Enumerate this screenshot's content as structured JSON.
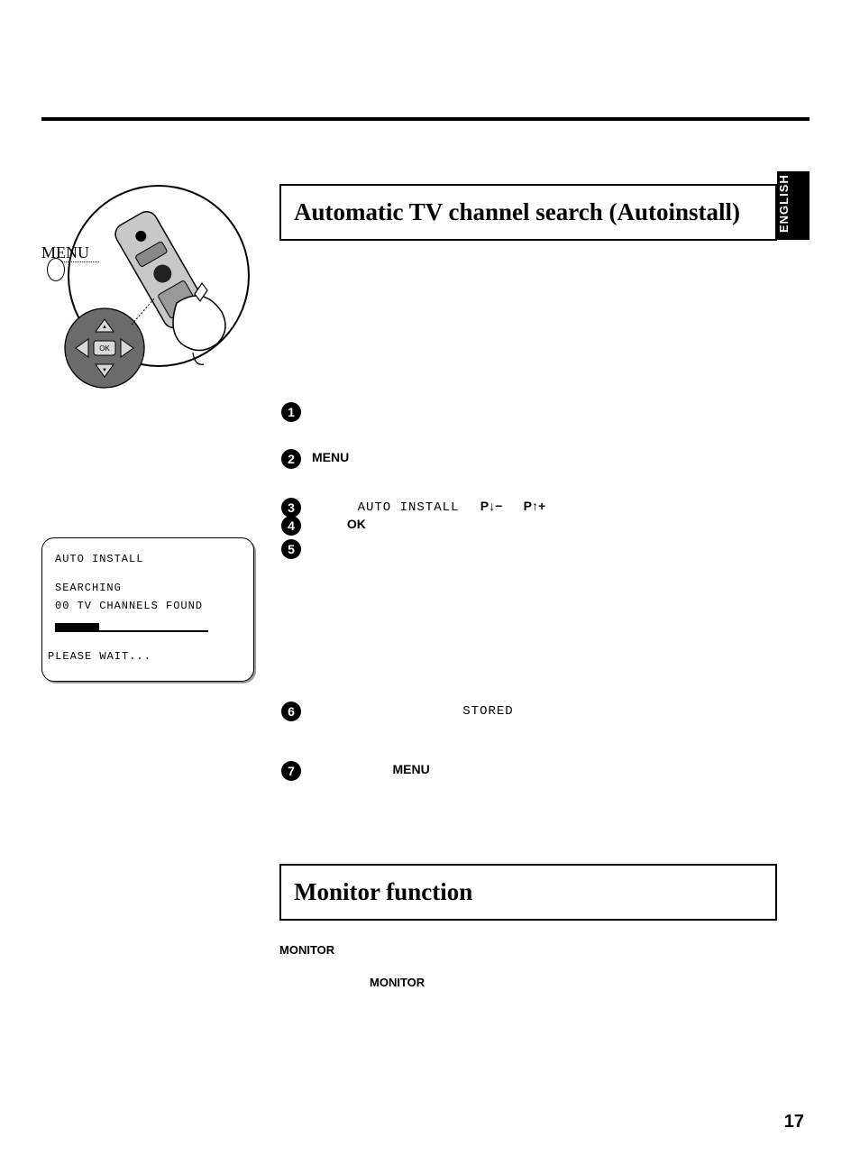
{
  "language_tab": "ENGLISH",
  "section1_title": "Automatic TV channel search (Autoinstall)",
  "section2_title": "Monitor function",
  "remote": {
    "menu_label": "MENU"
  },
  "steps": {
    "s2_menu": "MENU",
    "s3_autoinstall": "AUTO INSTALL",
    "s3_pdown": "P↓−",
    "s3_pup": "P↑+",
    "s4_ok": "OK",
    "s6_stored": "STORED",
    "s7_menu": "MENU"
  },
  "tv_screen": {
    "line1": "AUTO INSTALL",
    "line2": "SEARCHING",
    "line3": "00 TV CHANNELS FOUND",
    "progress_blocks": 7,
    "wait": "PLEASE WAIT..."
  },
  "monitor": {
    "label1": "MONITOR",
    "label2": "MONITOR"
  },
  "page_number": "17"
}
